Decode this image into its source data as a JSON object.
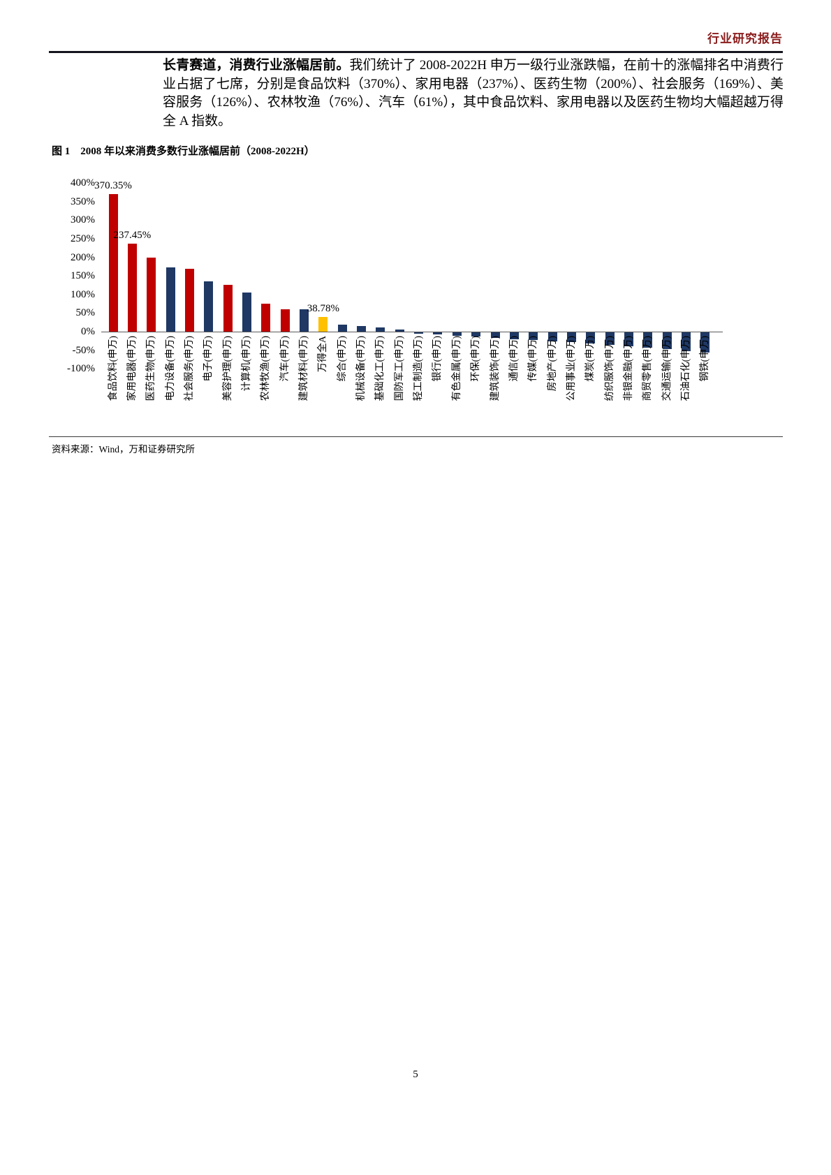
{
  "header": {
    "report_type": "行业研究报告"
  },
  "paragraph": {
    "bold_lead": "长青赛道，消费行业涨幅居前。",
    "body": "我们统计了 2008-2022H 申万一级行业涨跌幅，在前十的涨幅排名中消费行业占据了七席，分别是食品饮料（370%）、家用电器（237%）、医药生物（200%）、社会服务（169%）、美容服务（126%）、农林牧渔（76%）、汽车（61%），其中食品饮料、家用电器以及医药生物均大幅超越万得全 A 指数。"
  },
  "figure": {
    "caption": "图 1　2008 年以来消费多数行业涨幅居前（2008-2022H）",
    "source": "资料来源：Wind，万和证券研究所"
  },
  "page_number": "5",
  "chart_data": {
    "type": "bar",
    "title": "",
    "xlabel": "",
    "ylabel": "",
    "ylim": [
      -100,
      400
    ],
    "ytick_step": 50,
    "ytick_labels": [
      "400%",
      "350%",
      "300%",
      "250%",
      "200%",
      "150%",
      "100%",
      "50%",
      "0%",
      "-50%",
      "-100%"
    ],
    "grid": false,
    "legend": "none",
    "categories": [
      "食品饮料(申万)",
      "家用电器(申万)",
      "医药生物(申万)",
      "电力设备(申万)",
      "社会服务(申万)",
      "电子(申万)",
      "美容护理(申万)",
      "计算机(申万)",
      "农林牧渔(申万)",
      "汽车(申万)",
      "建筑材料(申万)",
      "万得全A",
      "综合(申万)",
      "机械设备(申万)",
      "基础化工(申万)",
      "国防军工(申万)",
      "轻工制造(申万)",
      "银行(申万)",
      "有色金属(申万)",
      "环保(申万)",
      "建筑装饰(申万)",
      "通信(申万)",
      "传媒(申万)",
      "房地产(申万)",
      "公用事业(申万)",
      "煤炭(申万)",
      "纺织服饰(申万)",
      "非银金融(申万)",
      "商贸零售(申万)",
      "交通运输(申万)",
      "石油石化(申万)",
      "钢铁(申万)"
    ],
    "values": [
      370.35,
      237.45,
      200,
      172,
      169,
      135,
      126,
      106,
      76,
      61,
      60,
      38.78,
      18,
      15,
      11,
      5,
      -3,
      -6,
      -9,
      -12,
      -15,
      -18,
      -21,
      -24,
      -27,
      -30,
      -33,
      -37,
      -41,
      -45,
      -50,
      -55
    ],
    "bar_colors": [
      "r",
      "r",
      "r",
      "b",
      "r",
      "b",
      "r",
      "b",
      "r",
      "r",
      "b",
      "y",
      "b",
      "b",
      "b",
      "b",
      "b",
      "b",
      "b",
      "b",
      "b",
      "b",
      "b",
      "b",
      "b",
      "b",
      "b",
      "b",
      "b",
      "b",
      "b",
      "b"
    ],
    "palette": {
      "r": "#C00000",
      "b": "#1F3864",
      "y": "#FFC000"
    },
    "data_labels": [
      {
        "index": 0,
        "text": "370.35%"
      },
      {
        "index": 1,
        "text": "237.45%"
      },
      {
        "index": 11,
        "text": "38.78%"
      }
    ]
  }
}
